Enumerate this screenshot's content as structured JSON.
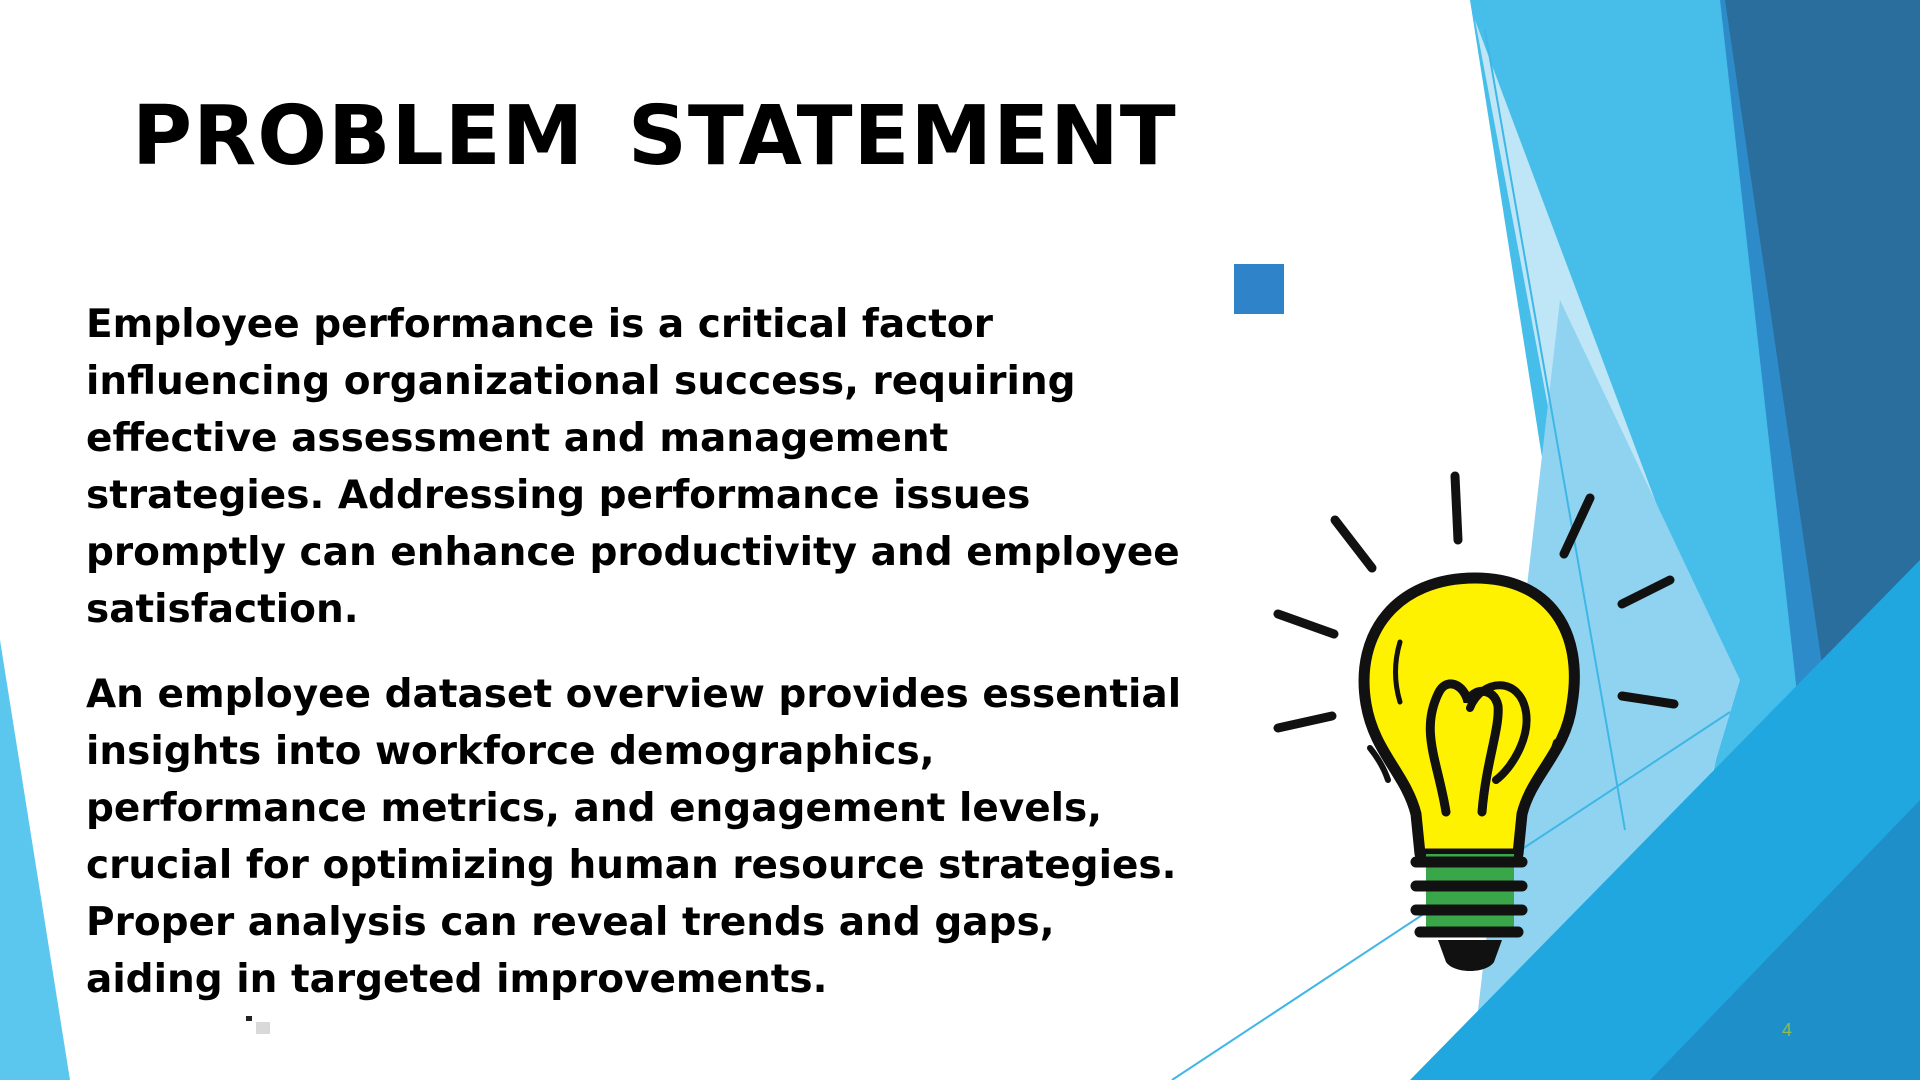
{
  "slide": {
    "title": "PROBLEM  STATEMENT",
    "paragraphs": [
      "Employee performance is a critical factor influencing organizational success, requiring effective assessment and management strategies. Addressing performance issues promptly can enhance productivity and employee satisfaction.",
      "An employee dataset overview provides essential insights into workforce demographics, performance metrics, and engagement levels, crucial for optimizing human resource strategies. Proper analysis can reveal trends and gaps, aiding in targeted improvements."
    ],
    "page_number": "4"
  },
  "colors": {
    "accent_square": "#2e83c9",
    "page_number": "#8bbf4a",
    "bulb_fill": "#fff200",
    "bulb_base": "#3aa64a"
  },
  "icons": {
    "illustration": "lightbulb-icon",
    "decoration": "accent-square"
  }
}
